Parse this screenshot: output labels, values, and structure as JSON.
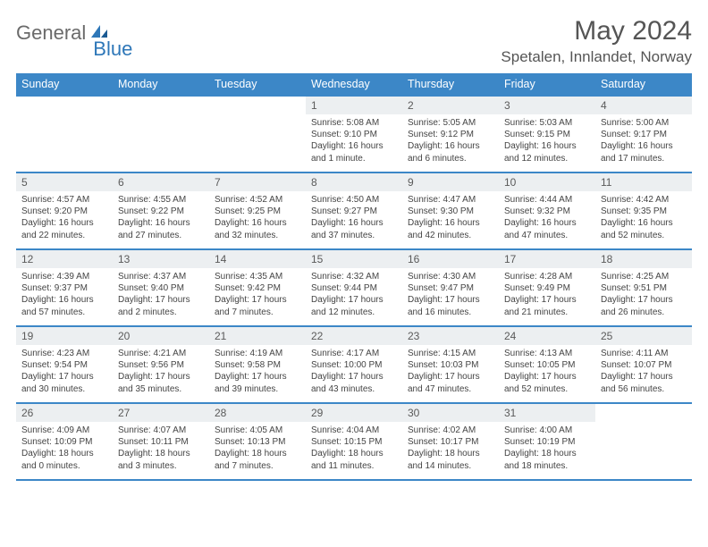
{
  "logo": {
    "part1": "General",
    "part2": "Blue"
  },
  "title": "May 2024",
  "location": "Spetalen, Innlandet, Norway",
  "colors": {
    "header_bg": "#3c87c7",
    "daynum_bg": "#eceff1"
  },
  "dayNames": [
    "Sunday",
    "Monday",
    "Tuesday",
    "Wednesday",
    "Thursday",
    "Friday",
    "Saturday"
  ],
  "weeks": [
    [
      null,
      null,
      null,
      {
        "n": "1",
        "sr": "Sunrise: 5:08 AM",
        "ss": "Sunset: 9:10 PM",
        "dl1": "Daylight: 16 hours",
        "dl2": "and 1 minute."
      },
      {
        "n": "2",
        "sr": "Sunrise: 5:05 AM",
        "ss": "Sunset: 9:12 PM",
        "dl1": "Daylight: 16 hours",
        "dl2": "and 6 minutes."
      },
      {
        "n": "3",
        "sr": "Sunrise: 5:03 AM",
        "ss": "Sunset: 9:15 PM",
        "dl1": "Daylight: 16 hours",
        "dl2": "and 12 minutes."
      },
      {
        "n": "4",
        "sr": "Sunrise: 5:00 AM",
        "ss": "Sunset: 9:17 PM",
        "dl1": "Daylight: 16 hours",
        "dl2": "and 17 minutes."
      }
    ],
    [
      {
        "n": "5",
        "sr": "Sunrise: 4:57 AM",
        "ss": "Sunset: 9:20 PM",
        "dl1": "Daylight: 16 hours",
        "dl2": "and 22 minutes."
      },
      {
        "n": "6",
        "sr": "Sunrise: 4:55 AM",
        "ss": "Sunset: 9:22 PM",
        "dl1": "Daylight: 16 hours",
        "dl2": "and 27 minutes."
      },
      {
        "n": "7",
        "sr": "Sunrise: 4:52 AM",
        "ss": "Sunset: 9:25 PM",
        "dl1": "Daylight: 16 hours",
        "dl2": "and 32 minutes."
      },
      {
        "n": "8",
        "sr": "Sunrise: 4:50 AM",
        "ss": "Sunset: 9:27 PM",
        "dl1": "Daylight: 16 hours",
        "dl2": "and 37 minutes."
      },
      {
        "n": "9",
        "sr": "Sunrise: 4:47 AM",
        "ss": "Sunset: 9:30 PM",
        "dl1": "Daylight: 16 hours",
        "dl2": "and 42 minutes."
      },
      {
        "n": "10",
        "sr": "Sunrise: 4:44 AM",
        "ss": "Sunset: 9:32 PM",
        "dl1": "Daylight: 16 hours",
        "dl2": "and 47 minutes."
      },
      {
        "n": "11",
        "sr": "Sunrise: 4:42 AM",
        "ss": "Sunset: 9:35 PM",
        "dl1": "Daylight: 16 hours",
        "dl2": "and 52 minutes."
      }
    ],
    [
      {
        "n": "12",
        "sr": "Sunrise: 4:39 AM",
        "ss": "Sunset: 9:37 PM",
        "dl1": "Daylight: 16 hours",
        "dl2": "and 57 minutes."
      },
      {
        "n": "13",
        "sr": "Sunrise: 4:37 AM",
        "ss": "Sunset: 9:40 PM",
        "dl1": "Daylight: 17 hours",
        "dl2": "and 2 minutes."
      },
      {
        "n": "14",
        "sr": "Sunrise: 4:35 AM",
        "ss": "Sunset: 9:42 PM",
        "dl1": "Daylight: 17 hours",
        "dl2": "and 7 minutes."
      },
      {
        "n": "15",
        "sr": "Sunrise: 4:32 AM",
        "ss": "Sunset: 9:44 PM",
        "dl1": "Daylight: 17 hours",
        "dl2": "and 12 minutes."
      },
      {
        "n": "16",
        "sr": "Sunrise: 4:30 AM",
        "ss": "Sunset: 9:47 PM",
        "dl1": "Daylight: 17 hours",
        "dl2": "and 16 minutes."
      },
      {
        "n": "17",
        "sr": "Sunrise: 4:28 AM",
        "ss": "Sunset: 9:49 PM",
        "dl1": "Daylight: 17 hours",
        "dl2": "and 21 minutes."
      },
      {
        "n": "18",
        "sr": "Sunrise: 4:25 AM",
        "ss": "Sunset: 9:51 PM",
        "dl1": "Daylight: 17 hours",
        "dl2": "and 26 minutes."
      }
    ],
    [
      {
        "n": "19",
        "sr": "Sunrise: 4:23 AM",
        "ss": "Sunset: 9:54 PM",
        "dl1": "Daylight: 17 hours",
        "dl2": "and 30 minutes."
      },
      {
        "n": "20",
        "sr": "Sunrise: 4:21 AM",
        "ss": "Sunset: 9:56 PM",
        "dl1": "Daylight: 17 hours",
        "dl2": "and 35 minutes."
      },
      {
        "n": "21",
        "sr": "Sunrise: 4:19 AM",
        "ss": "Sunset: 9:58 PM",
        "dl1": "Daylight: 17 hours",
        "dl2": "and 39 minutes."
      },
      {
        "n": "22",
        "sr": "Sunrise: 4:17 AM",
        "ss": "Sunset: 10:00 PM",
        "dl1": "Daylight: 17 hours",
        "dl2": "and 43 minutes."
      },
      {
        "n": "23",
        "sr": "Sunrise: 4:15 AM",
        "ss": "Sunset: 10:03 PM",
        "dl1": "Daylight: 17 hours",
        "dl2": "and 47 minutes."
      },
      {
        "n": "24",
        "sr": "Sunrise: 4:13 AM",
        "ss": "Sunset: 10:05 PM",
        "dl1": "Daylight: 17 hours",
        "dl2": "and 52 minutes."
      },
      {
        "n": "25",
        "sr": "Sunrise: 4:11 AM",
        "ss": "Sunset: 10:07 PM",
        "dl1": "Daylight: 17 hours",
        "dl2": "and 56 minutes."
      }
    ],
    [
      {
        "n": "26",
        "sr": "Sunrise: 4:09 AM",
        "ss": "Sunset: 10:09 PM",
        "dl1": "Daylight: 18 hours",
        "dl2": "and 0 minutes."
      },
      {
        "n": "27",
        "sr": "Sunrise: 4:07 AM",
        "ss": "Sunset: 10:11 PM",
        "dl1": "Daylight: 18 hours",
        "dl2": "and 3 minutes."
      },
      {
        "n": "28",
        "sr": "Sunrise: 4:05 AM",
        "ss": "Sunset: 10:13 PM",
        "dl1": "Daylight: 18 hours",
        "dl2": "and 7 minutes."
      },
      {
        "n": "29",
        "sr": "Sunrise: 4:04 AM",
        "ss": "Sunset: 10:15 PM",
        "dl1": "Daylight: 18 hours",
        "dl2": "and 11 minutes."
      },
      {
        "n": "30",
        "sr": "Sunrise: 4:02 AM",
        "ss": "Sunset: 10:17 PM",
        "dl1": "Daylight: 18 hours",
        "dl2": "and 14 minutes."
      },
      {
        "n": "31",
        "sr": "Sunrise: 4:00 AM",
        "ss": "Sunset: 10:19 PM",
        "dl1": "Daylight: 18 hours",
        "dl2": "and 18 minutes."
      },
      null
    ]
  ]
}
